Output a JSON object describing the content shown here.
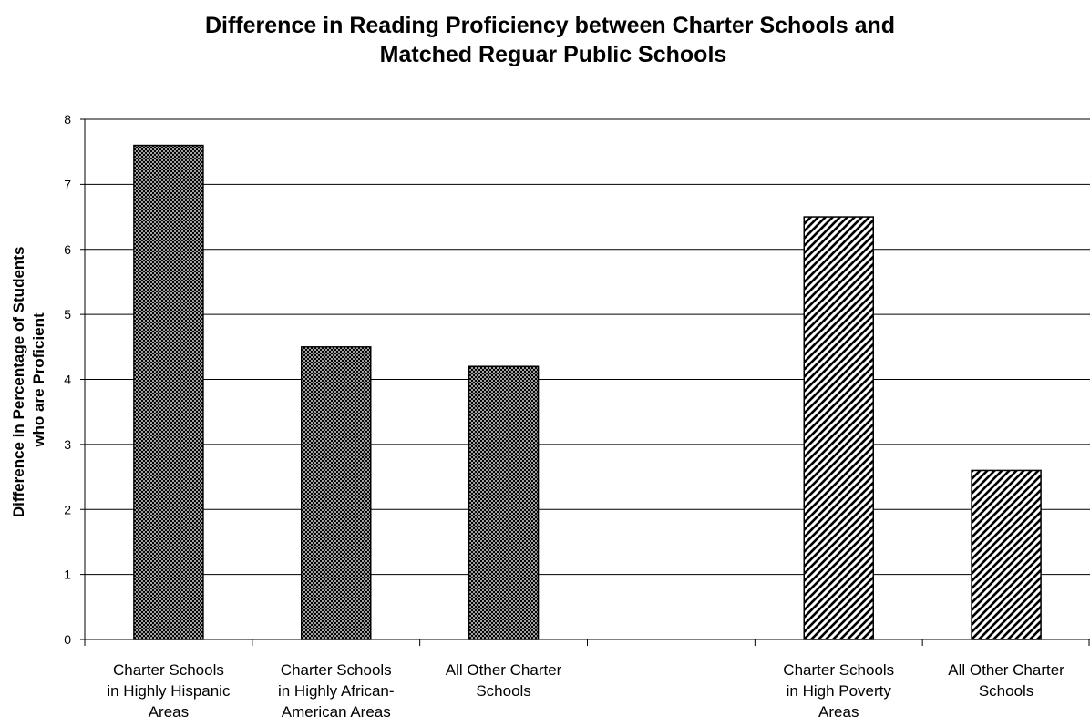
{
  "chart_data": {
    "type": "bar",
    "title": [
      "Difference in Reading Proficiency between Charter Schools and",
      "Matched Reguar Public Schools"
    ],
    "ylabel": [
      "Difference in Percentage of Students",
      "who are Proficient"
    ],
    "xlabel": "",
    "ylim": [
      0,
      8
    ],
    "yticks": [
      "0",
      "1",
      "2",
      "3",
      "4",
      "5",
      "6",
      "7",
      "8"
    ],
    "grid": true,
    "categories": [
      [
        "Charter Schools",
        "in Highly Hispanic",
        "Areas"
      ],
      [
        "Charter Schools",
        "in Highly African-",
        "American Areas"
      ],
      [
        "All Other Charter",
        "Schools"
      ],
      [],
      [
        "Charter Schools",
        "in High Poverty",
        "Areas"
      ],
      [
        "All Other Charter",
        "Schools"
      ]
    ],
    "values": [
      7.6,
      4.5,
      4.2,
      null,
      6.5,
      2.6
    ],
    "patterns": [
      "crosshatch",
      "crosshatch",
      "crosshatch",
      "none",
      "diagonal",
      "diagonal"
    ]
  }
}
